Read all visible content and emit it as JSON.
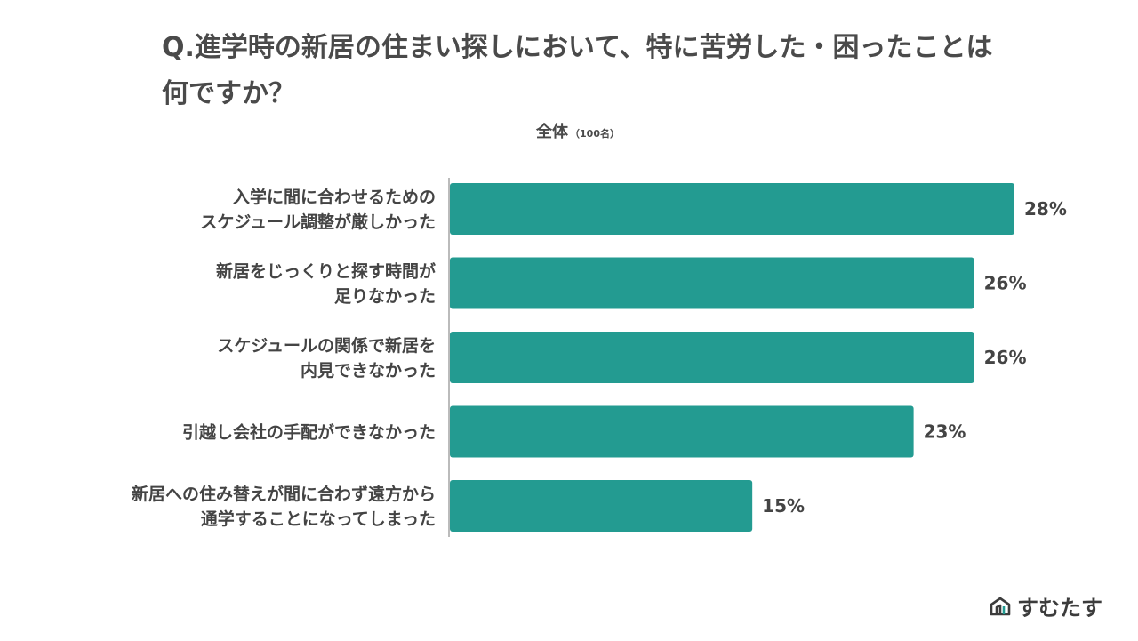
{
  "title": "Q.進学時の新居の住まい探しにおいて、特に苦労した・困ったことは何ですか？",
  "subtitle": {
    "main": "全体",
    "note": "（100名）"
  },
  "brand": {
    "name": "すむたす",
    "icon": "house-logo-icon"
  },
  "colors": {
    "bar": "#239b91",
    "text": "#444444",
    "axis": "#bbbbbb"
  },
  "chart_data": {
    "type": "bar",
    "orientation": "horizontal",
    "title": "Q.進学時の新居の住まい探しにおいて、特に苦労した・困ったことは何ですか？",
    "categories": [
      [
        "入学に間に合わせるための",
        "スケジュール調整が厳しかった"
      ],
      [
        "新居をじっくりと探す時間が",
        "足りなかった"
      ],
      [
        "スケジュールの関係で新居を",
        "内見できなかった"
      ],
      [
        "引越し会社の手配ができなかった"
      ],
      [
        "新居への住み替えが間に合わず遠方から",
        "通学することになってしまった"
      ]
    ],
    "values": [
      28,
      26,
      26,
      23,
      15
    ],
    "value_labels": [
      "28%",
      "26%",
      "26%",
      "23%",
      "15%"
    ],
    "unit": "%",
    "xlim": [
      0,
      28
    ],
    "grid": false,
    "legend": "none"
  }
}
